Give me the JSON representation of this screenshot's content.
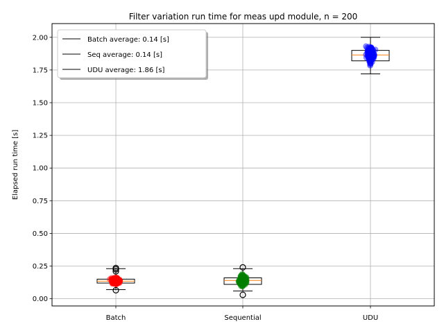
{
  "chart_data": {
    "type": "box",
    "title": "Filter variation run time for meas upd module, n = 200",
    "ylabel": "Elapsed run time [s]",
    "xlabel": "",
    "categories": [
      "Batch",
      "Sequential",
      "UDU"
    ],
    "ylim": [
      -0.055,
      2.105
    ],
    "yticks": [
      "0.00",
      "0.25",
      "0.50",
      "0.75",
      "1.00",
      "1.25",
      "1.50",
      "1.75",
      "2.00"
    ],
    "ytick_values": [
      0.0,
      0.25,
      0.5,
      0.75,
      1.0,
      1.25,
      1.5,
      1.75,
      2.0
    ],
    "grid": true,
    "legend_position": "top-left",
    "legend": [
      "Batch average: 0.14 [s]",
      "Seq average: 0.14 [s]",
      "UDU average: 1.86 [s]"
    ],
    "series": [
      {
        "category": "Batch",
        "color": "#ff0000",
        "box": {
          "whisker_low": 0.07,
          "q1": 0.12,
          "median": 0.135,
          "q3": 0.15,
          "whisker_high": 0.23
        },
        "fliers": [
          0.065,
          0.21,
          0.225,
          0.235
        ],
        "scatter_range": [
          0.07,
          0.23
        ]
      },
      {
        "category": "Sequential",
        "color": "#008000",
        "box": {
          "whisker_low": 0.06,
          "q1": 0.11,
          "median": 0.14,
          "q3": 0.16,
          "whisker_high": 0.23
        },
        "fliers": [
          0.03,
          0.24
        ],
        "scatter_range": [
          0.06,
          0.24
        ]
      },
      {
        "category": "UDU",
        "color": "#0000ff",
        "box": {
          "whisker_low": 1.72,
          "q1": 1.82,
          "median": 1.865,
          "q3": 1.9,
          "whisker_high": 2.0
        },
        "fliers": [],
        "scatter_range": [
          1.71,
          2.0
        ]
      }
    ]
  }
}
